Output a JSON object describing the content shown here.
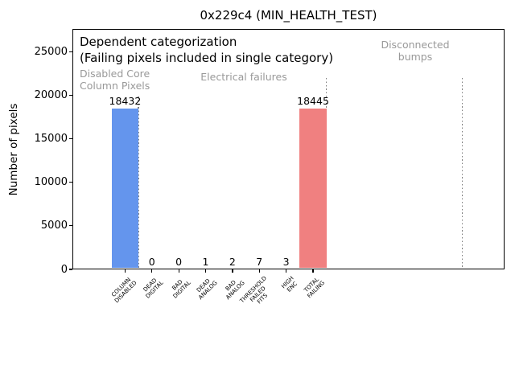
{
  "chart_data": {
    "type": "bar",
    "title": "0x229c4 (MIN_HEALTH_TEST)",
    "ylabel": "Number of pixels",
    "xlabel": "",
    "ylim": [
      0,
      27600
    ],
    "xlim": [
      -1.96,
      14.13
    ],
    "yticks": [
      0,
      5000,
      10000,
      15000,
      20000,
      25000
    ],
    "categories": [
      "COLUMN\nDISABLED",
      "DEAD\nDIGITAL",
      "BAD\nDIGITAL",
      "DEAD\nANALOG",
      "BAD\nANALOG",
      "THRESHOLD\nFAILED\nFITS",
      "HIGH\nENC",
      "TOTAL\nFAILING"
    ],
    "values": [
      18432,
      0,
      0,
      1,
      2,
      7,
      3,
      18445
    ],
    "bar_value_labels": [
      "18432",
      "0",
      "0",
      "1",
      "2",
      "7",
      "3",
      "18445"
    ],
    "bar_colors": [
      "#6495ed",
      "#6495ed",
      "#6495ed",
      "#6495ed",
      "#6495ed",
      "#6495ed",
      "#6495ed",
      "#f08080"
    ],
    "bar_width": 1.0,
    "grid": false,
    "legend": null,
    "annotations": {
      "headline": [
        "Dependent categorization",
        "(Failing pixels included in single category)"
      ],
      "section_labels": [
        {
          "text": "Disabled Core\nColumn Pixels"
        },
        {
          "text": "Electrical failures"
        },
        {
          "text": "Disconnected\nbumps"
        }
      ],
      "separators": [
        {
          "x": 0.5,
          "top_value": 19850
        },
        {
          "x": 7.5,
          "top_value": 22000
        },
        {
          "x": 12.56,
          "top_value": 22000
        }
      ]
    },
    "colors": {
      "primary_bar": "#6495ed",
      "total_bar": "#f08080",
      "separator_line": "#7f7f7f",
      "annotation_gray": "#999999",
      "axis": "#000000",
      "background": "#ffffff"
    }
  }
}
